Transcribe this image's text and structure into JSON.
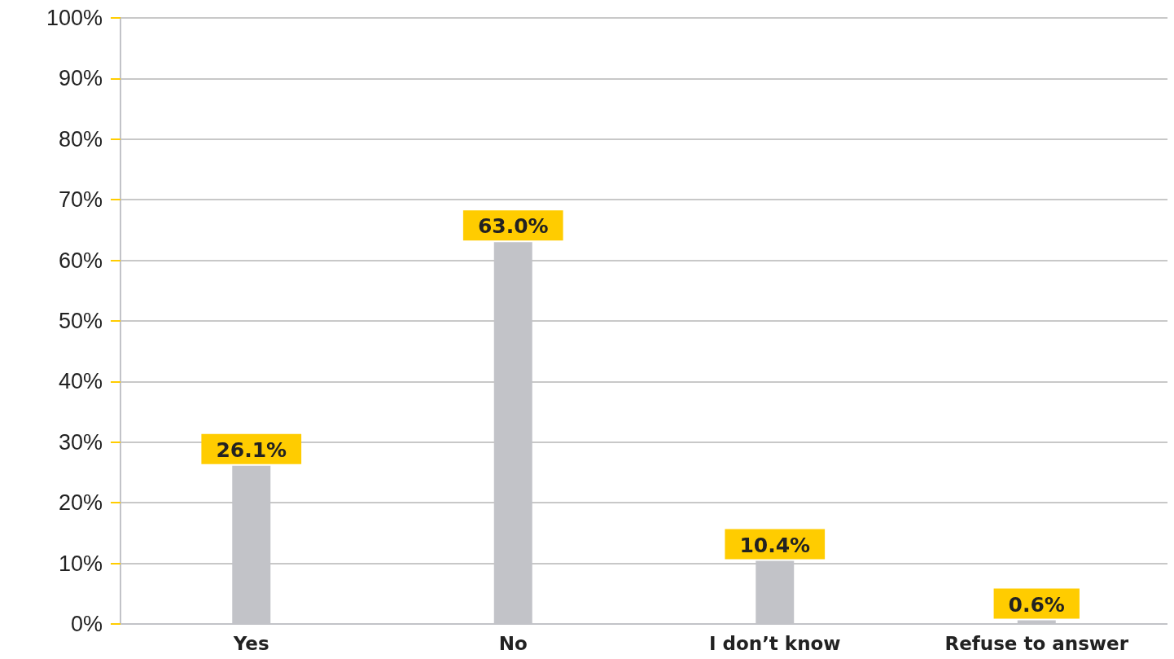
{
  "chart_data": {
    "type": "bar",
    "categories": [
      "Yes",
      "No",
      "I don’t know",
      "Refuse to answer"
    ],
    "values": [
      26.1,
      63.0,
      10.4,
      0.6
    ],
    "value_labels": [
      "26.1%",
      "63.0%",
      "10.4%",
      "0.6%"
    ],
    "color": "#c2c3c8",
    "ylim": [
      0,
      100
    ],
    "yticks": [
      {
        "value": 0,
        "label": "0%"
      },
      {
        "value": 10,
        "label": "10%"
      },
      {
        "value": 20,
        "label": "20%"
      },
      {
        "value": 30,
        "label": "30%"
      },
      {
        "value": 40,
        "label": "40%"
      },
      {
        "value": 50,
        "label": "50%"
      },
      {
        "value": 60,
        "label": "60%"
      },
      {
        "value": 70,
        "label": "70%"
      },
      {
        "value": 80,
        "label": "80%"
      },
      {
        "value": 90,
        "label": "90%"
      },
      {
        "value": 100,
        "label": "100%"
      }
    ],
    "grid": "y"
  }
}
